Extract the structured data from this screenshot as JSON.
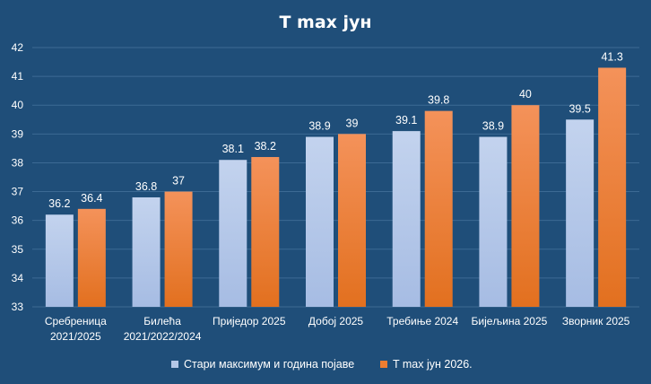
{
  "chart_data": {
    "type": "bar",
    "title": "T max јун",
    "categories": [
      [
        "Сребреница",
        "2021/2025"
      ],
      [
        "Билећа",
        "2021/2022/2024"
      ],
      [
        "Приједор 2025"
      ],
      [
        "Добој 2025"
      ],
      [
        "Требиње 2024"
      ],
      [
        "Бијељина 2025"
      ],
      [
        "Зворник 2025"
      ]
    ],
    "series": [
      {
        "name": "Стари максимум и година појаве",
        "color": "#b4c7e7",
        "values": [
          36.2,
          36.8,
          38.1,
          38.9,
          39.1,
          38.9,
          39.5
        ],
        "labels": [
          "36.2",
          "36.8",
          "38.1",
          "38.9",
          "39.1",
          "38.9",
          "39.5"
        ]
      },
      {
        "name": "T max јун 2026.",
        "color": "#ed7d31",
        "values": [
          36.4,
          37,
          38.2,
          39,
          39.8,
          40,
          41.3
        ],
        "labels": [
          "36.4",
          "37",
          "38.2",
          "39",
          "39.8",
          "40",
          "41.3"
        ]
      }
    ],
    "ylim": [
      33,
      42
    ],
    "yticks": [
      "33",
      "34",
      "35",
      "36",
      "37",
      "38",
      "39",
      "40",
      "41",
      "42"
    ],
    "grid": true,
    "legend_position": "bottom"
  }
}
